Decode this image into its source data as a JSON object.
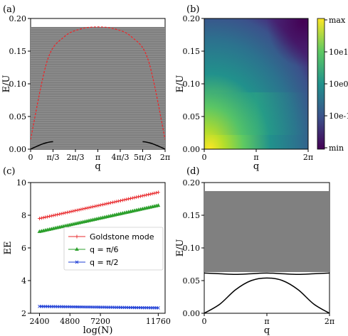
{
  "chart_data": [
    {
      "panel": "(a)",
      "type": "line",
      "xlabel": "q",
      "ylabel": "E/U",
      "xlim": [
        0,
        6.2832
      ],
      "ylim": [
        0,
        0.2
      ],
      "xticks": [
        "0",
        "π/3",
        "2π/3",
        "π",
        "4π/3",
        "5π/3",
        "2π"
      ],
      "yticks": [
        "0.00",
        "0.05",
        "0.10",
        "0.15",
        "0.20"
      ],
      "continuum": {
        "lower": 0.0,
        "upper": 0.187,
        "color": "#808080"
      },
      "series": [
        {
          "style": "red-dashed",
          "color": "#e8292c",
          "x": [
            0,
            0.785,
            1.571,
            2.356,
            3.1416,
            3.927,
            4.712,
            5.498,
            6.2832
          ],
          "y": [
            0.015,
            0.136,
            0.172,
            0.184,
            0.187,
            0.184,
            0.172,
            0.136,
            0.015
          ]
        },
        {
          "style": "black-solid",
          "color": "#000000",
          "x": [
            0,
            0.3,
            0.6,
            0.9,
            1.05,
            5.233,
            5.38,
            5.68,
            5.98,
            6.2832
          ],
          "y": [
            0.0,
            0.0045,
            0.0085,
            0.011,
            0.0115,
            0.0115,
            0.011,
            0.0085,
            0.0045,
            0.0
          ]
        }
      ]
    },
    {
      "panel": "(b)",
      "type": "heatmap",
      "xlabel": "q",
      "ylabel": "E/U",
      "xlim": [
        0,
        6.2832
      ],
      "ylim": [
        0,
        0.2
      ],
      "xticks": [
        "0",
        "π",
        "2π"
      ],
      "yticks": [
        "0.00",
        "0.05",
        "0.10",
        "0.15",
        "0.20"
      ],
      "colorbar": {
        "scale": "log",
        "ticks": [
          "max",
          "10e1",
          "10e0",
          "10e-1",
          "min"
        ],
        "colormap": [
          "#440154",
          "#3b528b",
          "#21918c",
          "#5ec962",
          "#fde725"
        ]
      }
    },
    {
      "panel": "(c)",
      "type": "line",
      "xlabel": "log(N)",
      "ylabel": "EE",
      "xlim": [
        1700,
        12300
      ],
      "ylim": [
        2,
        10
      ],
      "xticks": [
        "2400",
        "4800",
        "7200",
        "11760"
      ],
      "yticks": [
        "2",
        "4",
        "6",
        "8",
        "10"
      ],
      "legend": {
        "placement": "center-right"
      },
      "series": [
        {
          "name": "Goldstone mode",
          "color": "#e8292c",
          "marker": "+",
          "x_start": 2400,
          "x_end": 11760,
          "y_start": 7.8,
          "y_end": 9.4
        },
        {
          "name": "q = π/6",
          "color": "#2ca02c",
          "marker": "triangle",
          "x_start": 2400,
          "x_end": 11760,
          "y_start": 7.0,
          "y_end": 8.6
        },
        {
          "name": "q = π/2",
          "color": "#1f3fd6",
          "marker": "x",
          "x_start": 2400,
          "x_end": 11760,
          "y_start": 2.42,
          "y_end": 2.33
        }
      ]
    },
    {
      "panel": "(d)",
      "type": "line",
      "xlabel": "q",
      "ylabel": "E/U",
      "xlim": [
        0,
        6.2832
      ],
      "ylim": [
        0,
        0.2
      ],
      "xticks": [
        "0",
        "π",
        "2π"
      ],
      "yticks": [
        "0.00",
        "0.05",
        "0.10",
        "0.15",
        "0.20"
      ],
      "continuum": {
        "lower": 0.063,
        "upper": 0.187,
        "color": "#808080"
      },
      "series": [
        {
          "style": "black-solid",
          "color": "#000000",
          "x": [
            0,
            0.785,
            1.571,
            2.356,
            3.1416,
            3.927,
            4.712,
            5.498,
            6.2832
          ],
          "y": [
            0.0,
            0.014,
            0.036,
            0.05,
            0.054,
            0.05,
            0.036,
            0.014,
            0.0
          ]
        },
        {
          "style": "black-solid",
          "color": "#000000",
          "x": [
            0,
            0.785,
            1.571,
            2.356,
            3.1416,
            3.927,
            4.712,
            5.498,
            6.2832
          ],
          "y": [
            0.0615,
            0.0605,
            0.0595,
            0.0605,
            0.0615,
            0.0605,
            0.0595,
            0.0605,
            0.0615
          ]
        }
      ]
    }
  ]
}
